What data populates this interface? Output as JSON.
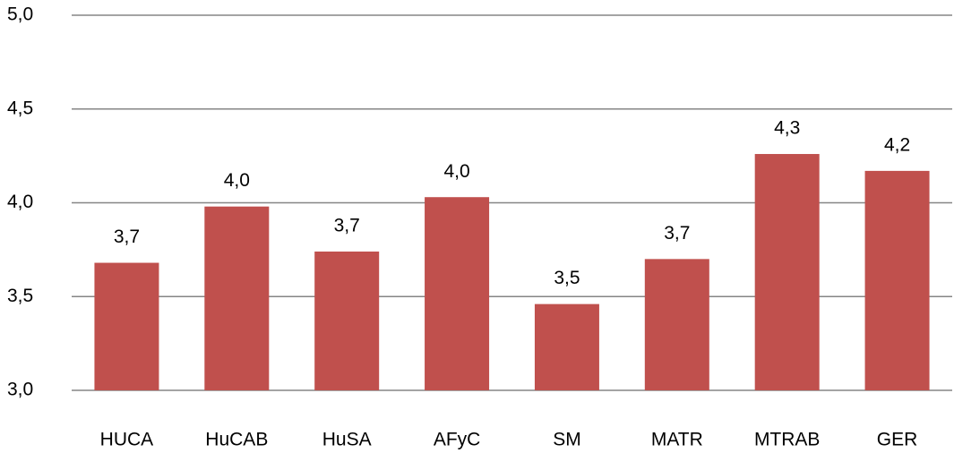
{
  "chart_data": {
    "type": "bar",
    "categories": [
      "HUCA",
      "HuCAB",
      "HuSA",
      "AFyC",
      "SM",
      "MATR",
      "MTRAB",
      "GER"
    ],
    "values": [
      3.68,
      3.98,
      3.74,
      4.03,
      3.46,
      3.7,
      4.26,
      4.17
    ],
    "value_labels": [
      "3,7",
      "4,0",
      "3,7",
      "4,0",
      "3,5",
      "3,7",
      "4,3",
      "4,2"
    ],
    "color": "#c0504d",
    "ylim": [
      3,
      5
    ],
    "yticks": [
      {
        "value": 3,
        "label": "3,0"
      },
      {
        "value": 3.5,
        "label": "3,5"
      },
      {
        "value": 4,
        "label": "4,0"
      },
      {
        "value": 4.5,
        "label": "4,5"
      },
      {
        "value": 5,
        "label": "5,0"
      }
    ],
    "grid": true
  }
}
